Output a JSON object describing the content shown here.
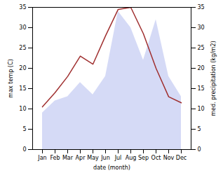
{
  "chart_data": {
    "type": "line",
    "categories": [
      "Jan",
      "Feb",
      "Mar",
      "Apr",
      "May",
      "Jun",
      "Jul",
      "Aug",
      "Sep",
      "Oct",
      "Nov",
      "Dec"
    ],
    "series": [
      {
        "type": "area",
        "axis": "y2",
        "color": "#b3bcee",
        "values": [
          9.0,
          12.0,
          13.0,
          16.5,
          13.5,
          18.0,
          34.0,
          30.0,
          22.0,
          32.0,
          18.0,
          13.0
        ]
      },
      {
        "type": "line",
        "color": "#a03030",
        "values": [
          10.5,
          14.0,
          18.0,
          23.0,
          21.0,
          28.0,
          34.5,
          35.0,
          28.5,
          20.0,
          13.0,
          11.5
        ]
      }
    ],
    "xlabel": "date (month)",
    "ylabel": "max temp (C)",
    "y2label": "med. precipitation (kg/m2)",
    "ylim": [
      0,
      35
    ],
    "yticks": [
      0,
      5,
      10,
      15,
      20,
      25,
      30,
      35
    ],
    "y2lim": [
      0,
      35
    ],
    "y2ticks": [
      0,
      5,
      10,
      15,
      20,
      25,
      30,
      35
    ]
  }
}
